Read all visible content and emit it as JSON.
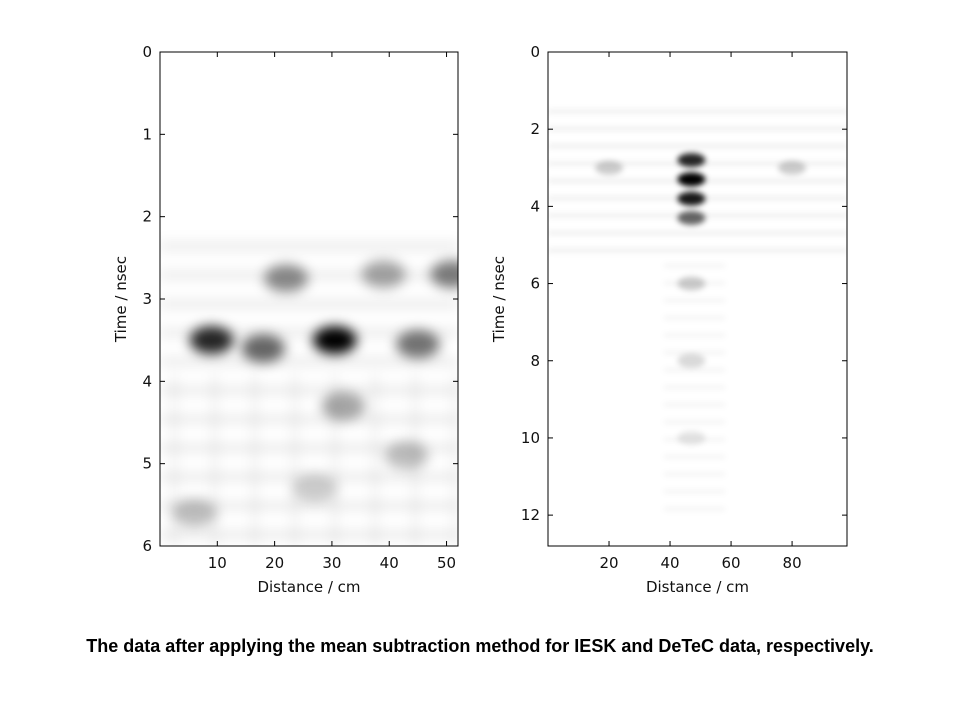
{
  "caption": "The data after applying the mean subtraction method for IESK and DeTeC data, respectively.",
  "chart_data": [
    {
      "type": "heatmap",
      "title": "",
      "xlabel": "Distance / cm",
      "ylabel": "Time / nsec",
      "xlim": [
        0,
        52
      ],
      "ylim": [
        0,
        6
      ],
      "y_inverted": true,
      "xticks": [
        10,
        20,
        30,
        40,
        50
      ],
      "yticks": [
        0,
        1,
        2,
        3,
        4,
        5,
        6
      ],
      "colormap": "grayscale (white = low, black = high)",
      "features": [
        {
          "x": 30.5,
          "y": 3.5,
          "intensity": 1.0
        },
        {
          "x": 9,
          "y": 3.5,
          "intensity": 0.85
        },
        {
          "x": 18,
          "y": 3.6,
          "intensity": 0.6
        },
        {
          "x": 45,
          "y": 3.55,
          "intensity": 0.55
        },
        {
          "x": 22,
          "y": 2.75,
          "intensity": 0.45
        },
        {
          "x": 51,
          "y": 2.7,
          "intensity": 0.5
        },
        {
          "x": 39,
          "y": 2.7,
          "intensity": 0.35
        },
        {
          "x": 32,
          "y": 4.3,
          "intensity": 0.35
        },
        {
          "x": 43,
          "y": 4.9,
          "intensity": 0.25
        },
        {
          "x": 6,
          "y": 5.6,
          "intensity": 0.25
        },
        {
          "x": 27,
          "y": 5.3,
          "intensity": 0.2
        }
      ]
    },
    {
      "type": "heatmap",
      "title": "",
      "xlabel": "Distance / cm",
      "ylabel": "Time / nsec",
      "xlim": [
        0,
        98
      ],
      "ylim": [
        0,
        12.8
      ],
      "y_inverted": true,
      "xticks": [
        20,
        40,
        60,
        80
      ],
      "yticks": [
        0,
        2,
        4,
        6,
        8,
        10,
        12
      ],
      "colormap": "grayscale (white = low, black = high)",
      "features": [
        {
          "x": 47,
          "y": 2.8,
          "intensity": 0.85
        },
        {
          "x": 47,
          "y": 3.3,
          "intensity": 1.0
        },
        {
          "x": 47,
          "y": 3.8,
          "intensity": 0.9
        },
        {
          "x": 47,
          "y": 4.3,
          "intensity": 0.6
        },
        {
          "x": 47,
          "y": 6.0,
          "intensity": 0.2
        },
        {
          "x": 47,
          "y": 8.0,
          "intensity": 0.15
        },
        {
          "x": 47,
          "y": 10.0,
          "intensity": 0.1
        },
        {
          "x": 20,
          "y": 3.0,
          "intensity": 0.2
        },
        {
          "x": 80,
          "y": 3.0,
          "intensity": 0.2
        }
      ]
    }
  ]
}
